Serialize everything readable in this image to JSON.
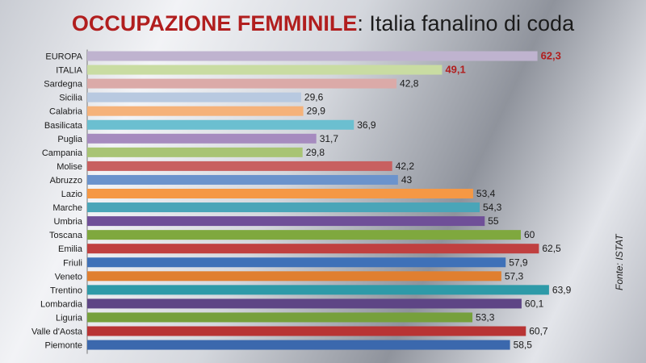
{
  "title": {
    "highlight": "OCCUPAZIONE FEMMINILE",
    "rest": ": Italia fanalino di coda"
  },
  "source": "Fonte: ISTAT",
  "chart_data": {
    "type": "bar",
    "orientation": "horizontal",
    "title": "OCCUPAZIONE FEMMINILE: Italia fanalino di coda",
    "categories": [
      "EUROPA",
      "ITALIA",
      "Sardegna",
      "Sicilia",
      "Calabria",
      "Basilicata",
      "Puglia",
      "Campania",
      "Molise",
      "Abruzzo",
      "Lazio",
      "Marche",
      "Umbria",
      "Toscana",
      "Emilia",
      "Friuli",
      "Veneto",
      "Trentino",
      "Lombardia",
      "Liguria",
      "Valle d'Aosta",
      "Piemonte"
    ],
    "values": [
      62.3,
      49.1,
      42.8,
      29.6,
      29.9,
      36.9,
      31.7,
      29.8,
      42.2,
      43,
      53.4,
      54.3,
      55,
      60,
      62.5,
      57.9,
      57.3,
      63.9,
      60.1,
      53.3,
      60.7,
      58.5
    ],
    "value_labels": [
      "62,3",
      "49,1",
      "42,8",
      "29,6",
      "29,9",
      "36,9",
      "31,7",
      "29,8",
      "42,2",
      "43",
      "53,4",
      "54,3",
      "55",
      "60",
      "62,5",
      "57,9",
      "57,3",
      "63,9",
      "60,1",
      "53,3",
      "60,7",
      "58,5"
    ],
    "highlighted": [
      "EUROPA",
      "ITALIA"
    ],
    "xlim": [
      0,
      66
    ],
    "grid": false,
    "colors": [
      "#bfb3cf",
      "#c9dca2",
      "#dbaaa8",
      "#b8c9e0",
      "#f5b27a",
      "#6bbfd0",
      "#a68bbf",
      "#a8c474",
      "#c86060",
      "#6b93cc",
      "#f59845",
      "#4aa5b8",
      "#6f4f98",
      "#7fa83e",
      "#c04040",
      "#3f71b8",
      "#e07f30",
      "#2e9aa8",
      "#5e4585",
      "#76a03c",
      "#b83434",
      "#3b68ad"
    ]
  }
}
